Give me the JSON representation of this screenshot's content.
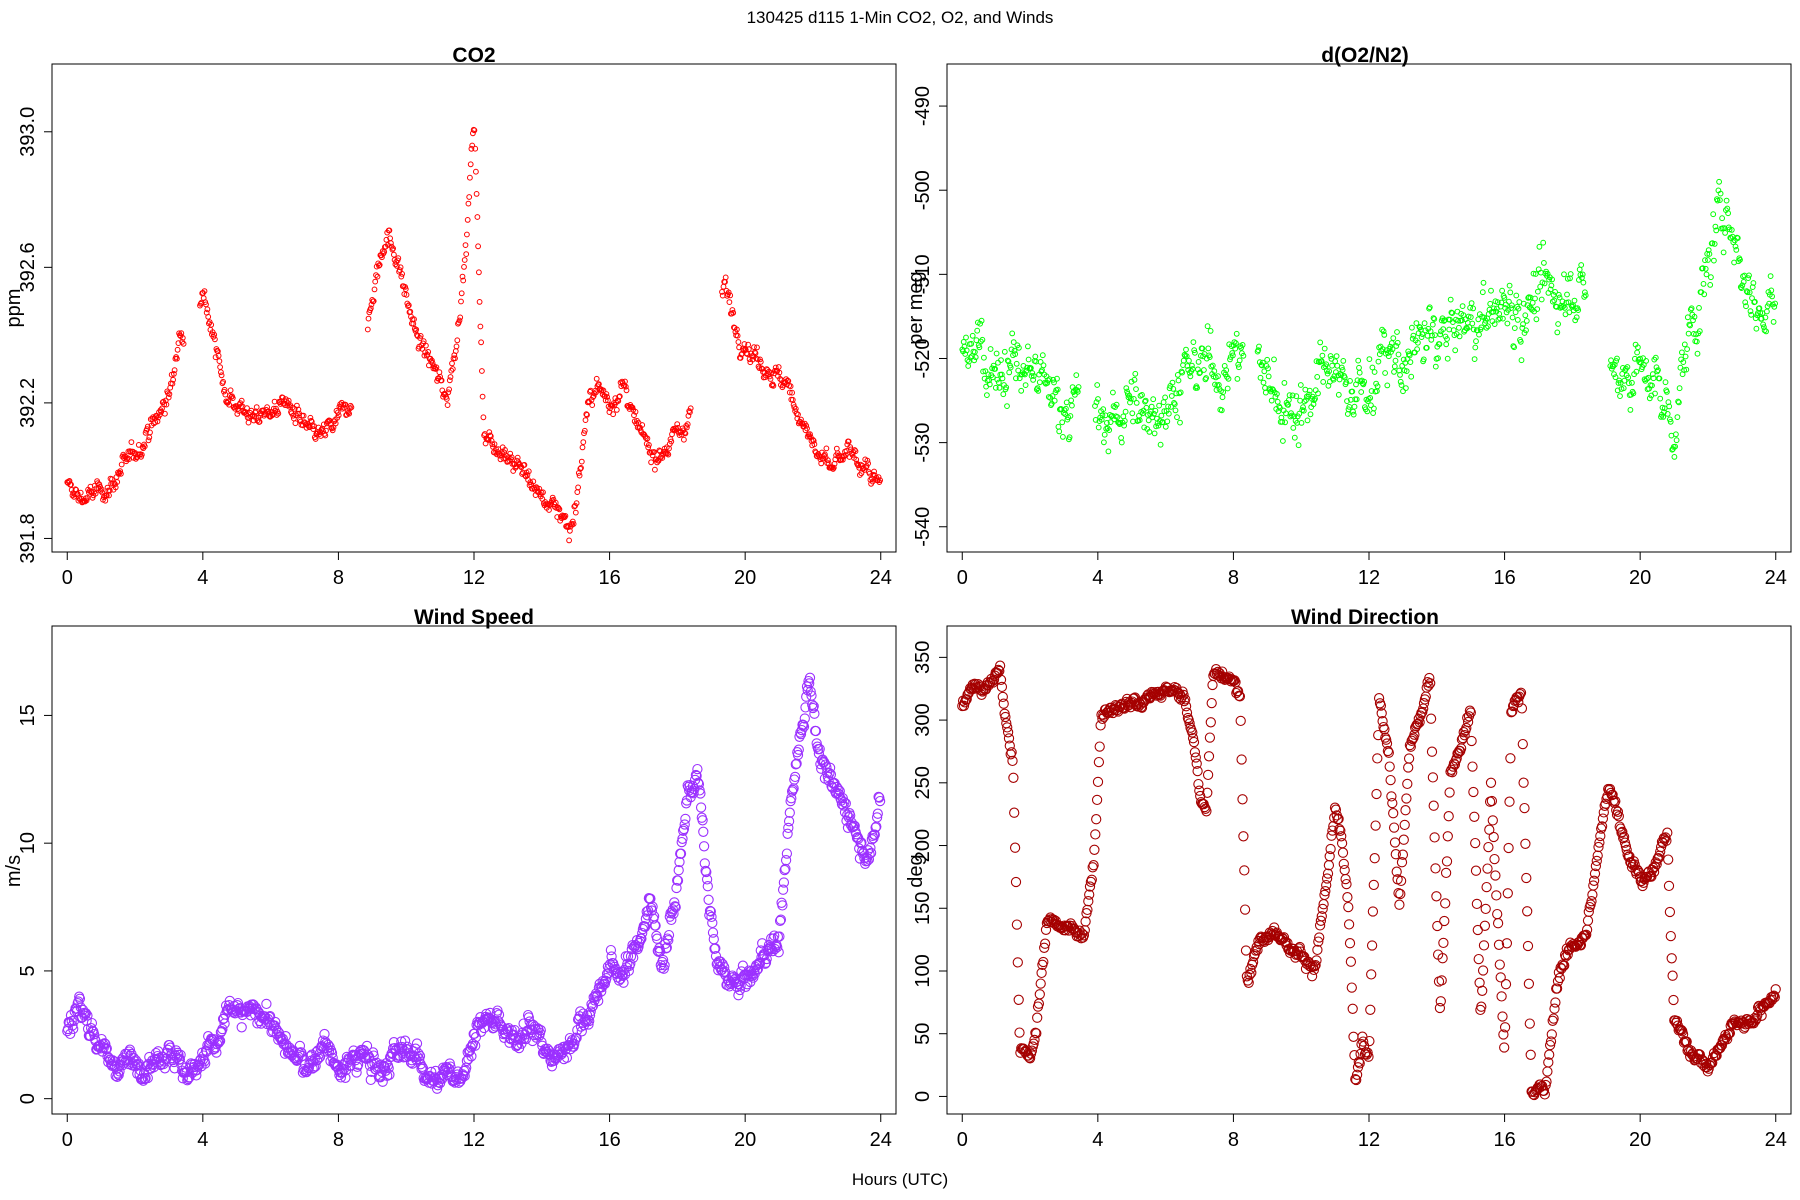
{
  "suptitle": "130425   d115   1-Min CO2, O2, and Winds",
  "xlabel": "Hours (UTC)",
  "chart_data": [
    {
      "id": "co2",
      "type": "scatter",
      "title": "CO2",
      "xlabel": "",
      "ylabel": "ppm",
      "color": "#ff0000",
      "marker": "small-open-circle",
      "xlim": [
        -0.45,
        24.45
      ],
      "ylim": [
        391.76,
        393.2
      ],
      "xticks": [
        0,
        4,
        8,
        12,
        16,
        20,
        24
      ],
      "yticks": [
        391.8,
        392.2,
        392.6,
        393.0
      ],
      "ytick_labels": [
        "391.8",
        "392.2",
        "392.6",
        "393.0"
      ],
      "segments": [
        [
          0.0,
          391.95
        ],
        [
          0.4,
          391.92
        ],
        [
          0.8,
          391.93
        ],
        [
          1.2,
          391.95
        ],
        [
          1.6,
          392.0
        ],
        [
          2.0,
          392.05
        ],
        [
          2.4,
          392.12
        ],
        [
          2.8,
          392.18
        ],
        [
          3.1,
          392.25
        ],
        [
          3.3,
          392.4
        ],
        [
          4.0,
          392.55
        ],
        [
          4.3,
          392.4
        ],
        [
          4.6,
          392.25
        ],
        [
          5.0,
          392.2
        ],
        [
          5.5,
          392.15
        ],
        [
          6.0,
          392.18
        ],
        [
          6.5,
          392.2
        ],
        [
          7.0,
          392.12
        ],
        [
          7.5,
          392.1
        ],
        [
          8.0,
          392.15
        ],
        [
          8.3,
          392.2
        ],
        [
          8.9,
          392.45
        ],
        [
          9.2,
          392.62
        ],
        [
          9.5,
          392.7
        ],
        [
          9.9,
          392.55
        ],
        [
          10.3,
          392.4
        ],
        [
          10.8,
          392.3
        ],
        [
          11.2,
          392.22
        ],
        [
          11.5,
          392.4
        ],
        [
          11.8,
          392.7
        ],
        [
          12.0,
          393.05
        ],
        [
          12.3,
          392.1
        ],
        [
          12.8,
          392.07
        ],
        [
          13.2,
          392.03
        ],
        [
          13.6,
          391.98
        ],
        [
          14.0,
          391.92
        ],
        [
          14.3,
          391.9
        ],
        [
          14.6,
          391.88
        ],
        [
          14.8,
          391.82
        ],
        [
          15.0,
          391.9
        ],
        [
          15.3,
          392.15
        ],
        [
          15.6,
          392.25
        ],
        [
          16.0,
          392.2
        ],
        [
          16.4,
          392.25
        ],
        [
          16.8,
          392.12
        ],
        [
          17.3,
          392.05
        ],
        [
          17.8,
          392.08
        ],
        [
          18.3,
          392.15
        ],
        [
          19.4,
          392.55
        ],
        [
          19.8,
          392.4
        ],
        [
          20.2,
          392.35
        ],
        [
          20.7,
          392.3
        ],
        [
          21.2,
          392.25
        ],
        [
          21.7,
          392.15
        ],
        [
          22.1,
          392.05
        ],
        [
          22.5,
          392.0
        ],
        [
          23.0,
          392.05
        ],
        [
          23.5,
          392.02
        ],
        [
          23.9,
          391.95
        ]
      ],
      "gaps": [
        [
          3.45,
          3.9
        ],
        [
          8.4,
          8.85
        ],
        [
          18.4,
          19.3
        ]
      ]
    },
    {
      "id": "o2",
      "type": "scatter",
      "title": "d(O2/N2)",
      "xlabel": "",
      "ylabel": "per meg",
      "color": "#00ff00",
      "marker": "small-open-circle",
      "xlim": [
        -0.45,
        24.45
      ],
      "ylim": [
        -543,
        -485
      ],
      "xticks": [
        0,
        4,
        8,
        12,
        16,
        20,
        24
      ],
      "yticks": [
        -540,
        -530,
        -520,
        -510,
        -500,
        -490
      ],
      "ytick_labels": [
        "-540",
        "-530",
        "-520",
        "-510",
        "-500",
        "-490"
      ],
      "segments": [
        [
          0.0,
          -520
        ],
        [
          0.5,
          -518
        ],
        [
          1.0,
          -521
        ],
        [
          1.5,
          -521
        ],
        [
          2.0,
          -522
        ],
        [
          2.5,
          -524
        ],
        [
          3.0,
          -525
        ],
        [
          3.3,
          -525
        ],
        [
          4.0,
          -528
        ],
        [
          4.5,
          -527
        ],
        [
          5.0,
          -526
        ],
        [
          5.5,
          -526
        ],
        [
          6.0,
          -525
        ],
        [
          6.5,
          -523
        ],
        [
          7.0,
          -521
        ],
        [
          7.5,
          -521
        ],
        [
          8.0,
          -521
        ],
        [
          8.2,
          -519
        ],
        [
          8.8,
          -521
        ],
        [
          9.3,
          -525
        ],
        [
          9.8,
          -526
        ],
        [
          10.3,
          -524
        ],
        [
          10.8,
          -522
        ],
        [
          11.3,
          -523
        ],
        [
          11.8,
          -524
        ],
        [
          12.3,
          -521
        ],
        [
          12.8,
          -520
        ],
        [
          13.2,
          -521
        ],
        [
          13.5,
          -518
        ],
        [
          14.0,
          -517
        ],
        [
          14.5,
          -517
        ],
        [
          15.0,
          -516
        ],
        [
          15.5,
          -515
        ],
        [
          16.0,
          -514
        ],
        [
          16.5,
          -514
        ],
        [
          17.0,
          -513
        ],
        [
          17.5,
          -512
        ],
        [
          18.0,
          -511
        ],
        [
          18.3,
          -513
        ],
        [
          19.2,
          -522
        ],
        [
          19.7,
          -521
        ],
        [
          20.2,
          -522
        ],
        [
          20.7,
          -525
        ],
        [
          21.0,
          -528
        ],
        [
          21.4,
          -518
        ],
        [
          21.8,
          -513
        ],
        [
          22.2,
          -506
        ],
        [
          22.6,
          -501
        ],
        [
          23.0,
          -510
        ],
        [
          23.5,
          -514
        ],
        [
          24.0,
          -513
        ]
      ],
      "gaps": [
        [
          3.45,
          3.9
        ],
        [
          8.3,
          8.7
        ],
        [
          18.4,
          19.1
        ]
      ]
    },
    {
      "id": "wspd",
      "type": "scatter",
      "title": "Wind Speed",
      "xlabel": "",
      "ylabel": "m/s",
      "color": "#9b30ff",
      "marker": "open-circle",
      "xlim": [
        -0.45,
        24.45
      ],
      "ylim": [
        -0.6,
        18.5
      ],
      "xticks": [
        0,
        4,
        8,
        12,
        16,
        20,
        24
      ],
      "yticks": [
        0,
        5,
        10,
        15
      ],
      "ytick_labels": [
        "0",
        "5",
        "10",
        "15"
      ],
      "segments": [
        [
          0.0,
          2.5
        ],
        [
          0.3,
          3.8
        ],
        [
          0.6,
          3.0
        ],
        [
          1.0,
          2.2
        ],
        [
          1.4,
          1.2
        ],
        [
          1.8,
          1.4
        ],
        [
          2.2,
          1.5
        ],
        [
          2.6,
          1.6
        ],
        [
          3.0,
          2.0
        ],
        [
          3.3,
          1.5
        ],
        [
          3.6,
          0.8
        ],
        [
          4.0,
          1.8
        ],
        [
          4.4,
          2.1
        ],
        [
          4.8,
          3.5
        ],
        [
          5.2,
          3.2
        ],
        [
          5.6,
          3.5
        ],
        [
          6.0,
          3.1
        ],
        [
          6.4,
          2.0
        ],
        [
          6.8,
          1.5
        ],
        [
          7.2,
          1.2
        ],
        [
          7.6,
          2.4
        ],
        [
          8.0,
          0.9
        ],
        [
          8.4,
          1.5
        ],
        [
          8.8,
          1.7
        ],
        [
          9.2,
          1.0
        ],
        [
          9.6,
          1.6
        ],
        [
          10.0,
          1.9
        ],
        [
          10.4,
          1.6
        ],
        [
          10.8,
          0.7
        ],
        [
          11.2,
          0.8
        ],
        [
          11.6,
          0.9
        ],
        [
          12.0,
          2.5
        ],
        [
          12.4,
          3.2
        ],
        [
          12.8,
          2.6
        ],
        [
          13.2,
          2.2
        ],
        [
          13.6,
          3.2
        ],
        [
          14.0,
          2.0
        ],
        [
          14.4,
          1.5
        ],
        [
          14.8,
          2.3
        ],
        [
          15.2,
          3.0
        ],
        [
          15.6,
          3.8
        ],
        [
          16.0,
          5.2
        ],
        [
          16.4,
          4.8
        ],
        [
          16.8,
          6.0
        ],
        [
          17.2,
          7.6
        ],
        [
          17.6,
          5.4
        ],
        [
          18.0,
          8.5
        ],
        [
          18.3,
          12.0
        ],
        [
          18.6,
          12.5
        ],
        [
          18.9,
          8.0
        ],
        [
          19.2,
          5.0
        ],
        [
          19.5,
          4.6
        ],
        [
          19.8,
          4.4
        ],
        [
          20.2,
          4.8
        ],
        [
          20.6,
          5.8
        ],
        [
          21.0,
          6.2
        ],
        [
          21.3,
          11.0
        ],
        [
          21.6,
          14.0
        ],
        [
          21.9,
          16.5
        ],
        [
          22.2,
          13.5
        ],
        [
          22.6,
          12.0
        ],
        [
          23.0,
          11.5
        ],
        [
          23.4,
          10.0
        ],
        [
          23.7,
          9.5
        ],
        [
          24.0,
          12.0
        ]
      ],
      "gaps": []
    },
    {
      "id": "wdir",
      "type": "scatter",
      "title": "Wind Direction",
      "xlabel": "",
      "ylabel": "deg",
      "color": "#a50000",
      "marker": "open-circle",
      "xlim": [
        -0.45,
        24.45
      ],
      "ylim": [
        -14,
        375
      ],
      "xticks": [
        0,
        4,
        8,
        12,
        16,
        20,
        24
      ],
      "yticks": [
        0,
        50,
        100,
        150,
        200,
        250,
        300,
        350
      ],
      "ytick_labels": [
        "0",
        "50",
        "100",
        "150",
        "200",
        "250",
        "300",
        "350"
      ],
      "segments": [
        [
          0.0,
          310
        ],
        [
          0.3,
          330
        ],
        [
          0.6,
          325
        ],
        [
          0.9,
          330
        ],
        [
          1.1,
          340
        ],
        [
          1.3,
          300
        ],
        [
          1.5,
          260
        ],
        [
          1.7,
          40
        ],
        [
          2.0,
          30
        ],
        [
          2.2,
          60
        ],
        [
          2.5,
          140
        ],
        [
          2.9,
          140
        ],
        [
          3.3,
          130
        ],
        [
          3.6,
          125
        ],
        [
          3.9,
          200
        ],
        [
          4.1,
          305
        ],
        [
          4.5,
          310
        ],
        [
          5.0,
          315
        ],
        [
          5.5,
          320
        ],
        [
          6.0,
          325
        ],
        [
          6.5,
          320
        ],
        [
          6.8,
          290
        ],
        [
          7.0,
          240
        ],
        [
          7.2,
          225
        ],
        [
          7.4,
          340
        ],
        [
          7.8,
          330
        ],
        [
          8.0,
          330
        ],
        [
          8.2,
          320
        ],
        [
          8.4,
          95
        ],
        [
          8.8,
          125
        ],
        [
          9.2,
          135
        ],
        [
          9.6,
          120
        ],
        [
          10.0,
          115
        ],
        [
          10.4,
          100
        ],
        [
          10.8,
          180
        ],
        [
          11.0,
          230
        ],
        [
          11.2,
          200
        ],
        [
          11.4,
          150
        ],
        [
          11.6,
          10
        ],
        [
          11.8,
          40
        ],
        [
          12.0,
          30
        ],
        [
          12.3,
          320
        ],
        [
          12.6,
          270
        ],
        [
          12.9,
          150
        ],
        [
          13.2,
          280
        ],
        [
          13.5,
          300
        ],
        [
          13.8,
          330
        ],
        [
          14.1,
          60
        ],
        [
          14.4,
          260
        ],
        [
          14.7,
          280
        ],
        [
          15.0,
          310
        ],
        [
          15.3,
          60
        ],
        [
          15.6,
          250
        ],
        [
          16.0,
          30
        ],
        [
          16.2,
          310
        ],
        [
          16.5,
          320
        ],
        [
          16.8,
          5
        ],
        [
          17.2,
          5
        ],
        [
          17.6,
          100
        ],
        [
          18.0,
          120
        ],
        [
          18.4,
          130
        ],
        [
          18.8,
          200
        ],
        [
          19.1,
          250
        ],
        [
          19.4,
          220
        ],
        [
          19.7,
          190
        ],
        [
          20.0,
          175
        ],
        [
          20.4,
          180
        ],
        [
          20.8,
          210
        ],
        [
          21.0,
          60
        ],
        [
          21.3,
          45
        ],
        [
          21.7,
          30
        ],
        [
          22.0,
          25
        ],
        [
          22.4,
          40
        ],
        [
          22.8,
          60
        ],
        [
          23.2,
          60
        ],
        [
          23.6,
          70
        ],
        [
          24.0,
          85
        ]
      ],
      "gaps": []
    }
  ]
}
